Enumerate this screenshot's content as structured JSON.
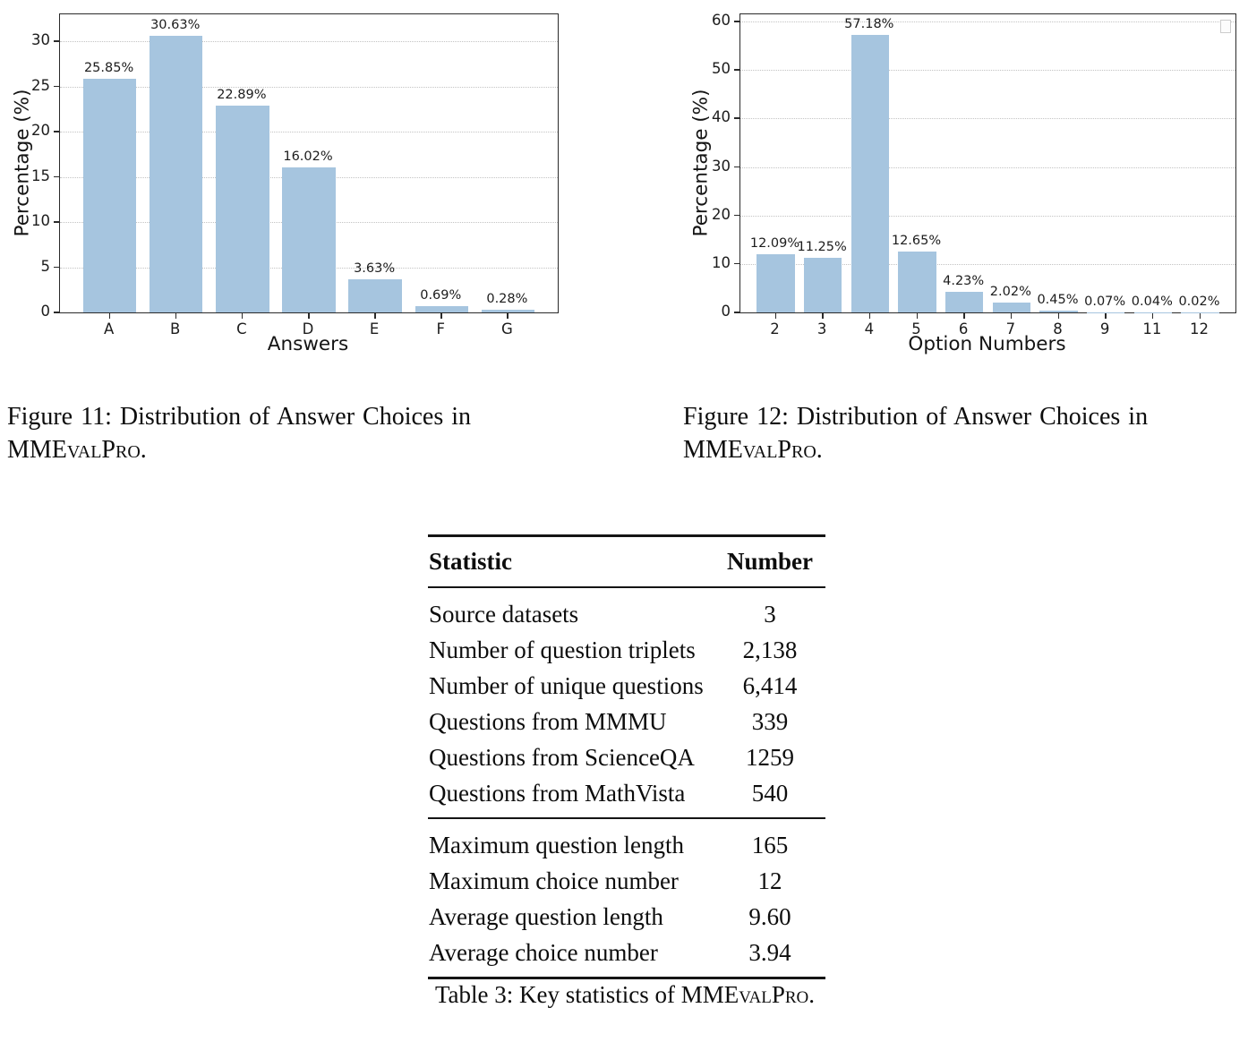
{
  "figure11_caption": {
    "line1": "Figure 11: Distribution of Answer Choices in",
    "brand": "MMEvalPro."
  },
  "figure12_caption": {
    "line1": "Figure 12: Distribution of Answer Choices in",
    "brand": "MMEvalPro."
  },
  "table3": {
    "col_headers": [
      "Statistic",
      "Number"
    ],
    "rows_section1": [
      [
        "Source datasets",
        "3"
      ],
      [
        "Number of question triplets",
        "2,138"
      ],
      [
        "Number of unique questions",
        "6,414"
      ],
      [
        "Questions from MMMU",
        "339"
      ],
      [
        "Questions from ScienceQA",
        "1259"
      ],
      [
        "Questions from MathVista",
        "540"
      ]
    ],
    "rows_section2": [
      [
        "Maximum question length",
        "165"
      ],
      [
        "Maximum choice number",
        "12"
      ],
      [
        "Average question length",
        "9.60"
      ],
      [
        "Average choice number",
        "3.94"
      ]
    ],
    "caption_prefix": "Table 3: Key statistics of",
    "caption_brand": "MMEvalPro."
  },
  "chart_data": [
    {
      "id": "fig11",
      "type": "bar",
      "title": "",
      "categories": [
        "A",
        "B",
        "C",
        "D",
        "E",
        "F",
        "G"
      ],
      "values": [
        25.85,
        30.63,
        22.89,
        16.02,
        3.63,
        0.69,
        0.28
      ],
      "value_labels": [
        "25.85%",
        "30.63%",
        "22.89%",
        "16.02%",
        "3.63%",
        "0.69%",
        "0.28%"
      ],
      "xlabel": "Answers",
      "ylabel": "Percentage (%)",
      "yticks": [
        0,
        5,
        10,
        15,
        20,
        25,
        30
      ],
      "ylim": [
        0,
        33
      ],
      "grid": "horizontal dotted",
      "legend": "none",
      "bar_color": "#a6c5df"
    },
    {
      "id": "fig12",
      "type": "bar",
      "title": "",
      "categories": [
        "2",
        "3",
        "4",
        "5",
        "6",
        "7",
        "8",
        "9",
        "11",
        "12"
      ],
      "values": [
        12.09,
        11.25,
        57.18,
        12.65,
        4.23,
        2.02,
        0.45,
        0.07,
        0.04,
        0.02
      ],
      "value_labels": [
        "12.09%",
        "11.25%",
        "57.18%",
        "12.65%",
        "4.23%",
        "2.02%",
        "0.45%",
        "0.07%",
        "0.04%",
        "0.02%"
      ],
      "xlabel": "Option Numbers",
      "ylabel": "Percentage (%)",
      "yticks": [
        0,
        10,
        20,
        30,
        40,
        50,
        60
      ],
      "ylim": [
        0,
        61.5
      ],
      "grid": "horizontal dotted",
      "legend": "empty placeholder top-right",
      "bar_color": "#a6c5df"
    }
  ]
}
